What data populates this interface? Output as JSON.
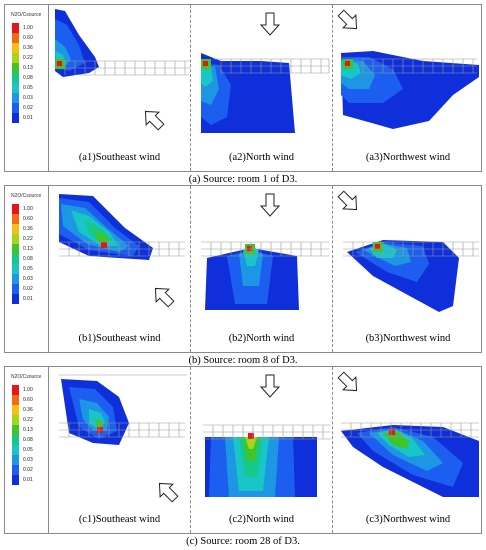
{
  "legend": {
    "title": "N2O/Csource",
    "levels": [
      {
        "label": "1.00",
        "color": "#e8141a"
      },
      {
        "label": "0.60",
        "color": "#f36a12"
      },
      {
        "label": "0.36",
        "color": "#f5c013"
      },
      {
        "label": "0.22",
        "color": "#a6d617"
      },
      {
        "label": "0.13",
        "color": "#3fc42a"
      },
      {
        "label": "0.08",
        "color": "#16c98b"
      },
      {
        "label": "0.05",
        "color": "#18c6c8"
      },
      {
        "label": "0.03",
        "color": "#1d97e3"
      },
      {
        "label": "0.02",
        "color": "#1c5ff0"
      },
      {
        "label": "0.01",
        "color": "#0e2fd9"
      }
    ]
  },
  "sections": [
    {
      "caption": "(a) Source: room 1 of D3.",
      "panels": [
        {
          "title": "(a1)Southeast wind",
          "wind": "southeast",
          "source_room": 1
        },
        {
          "title": "(a2)North wind",
          "wind": "north",
          "source_room": 1
        },
        {
          "title": "(a3)Northwest wind",
          "wind": "northwest",
          "source_room": 1
        }
      ]
    },
    {
      "caption": "(b) Source: room 8 of D3.",
      "panels": [
        {
          "title": "(b1)Southeast wind",
          "wind": "southeast",
          "source_room": 8
        },
        {
          "title": "(b2)North wind",
          "wind": "north",
          "source_room": 8
        },
        {
          "title": "(b3)Northwest wind",
          "wind": "northwest",
          "source_room": 8
        }
      ]
    },
    {
      "caption": "(c) Source: room 28 of D3.",
      "panels": [
        {
          "title": "(c1)Southeast wind",
          "wind": "southeast",
          "source_room": 28
        },
        {
          "title": "(c2)North wind",
          "wind": "north",
          "source_room": 28
        },
        {
          "title": "(c3)Northwest wind",
          "wind": "northwest",
          "source_room": 28
        }
      ]
    }
  ]
}
